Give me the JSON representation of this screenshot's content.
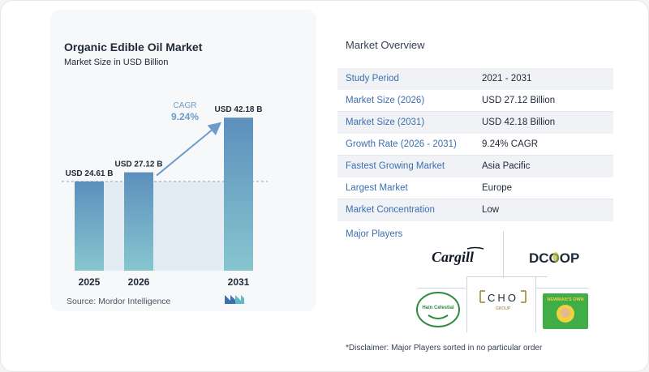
{
  "chart_data": {
    "type": "bar",
    "title": "Organic Edible Oil Market",
    "subtitle": "Market Size in USD Billion",
    "categories": [
      "2025",
      "2026",
      "2031"
    ],
    "values": [
      24.61,
      27.12,
      42.18
    ],
    "value_labels": [
      "USD 24.61 B",
      "USD 27.12 B",
      "USD 42.18 B"
    ],
    "cagr_label": "CAGR",
    "cagr_value": "9.24%",
    "ylim": [
      0,
      44
    ],
    "bar_color_top": "#5d8fbd",
    "bar_color_bottom": "#86c6cf",
    "accent_color": "#6b9ccc"
  },
  "source": "Source:  Mordor Intelligence",
  "overview": {
    "title": "Market Overview",
    "rows": [
      {
        "label": "Study Period",
        "value": "2021 - 2031"
      },
      {
        "label": "Market Size (2026)",
        "value": "USD 27.12 Billion"
      },
      {
        "label": "Market Size (2031)",
        "value": "USD 42.18 Billion"
      },
      {
        "label": "Growth Rate (2026 - 2031)",
        "value": "9.24% CAGR"
      },
      {
        "label": "Fastest Growing Market",
        "value": "Asia Pacific"
      },
      {
        "label": "Largest Market",
        "value": "Europe"
      },
      {
        "label": "Market Concentration",
        "value": "Low"
      }
    ]
  },
  "players": {
    "title": "Major Players",
    "logos": [
      "Cargill",
      "DCOOP",
      "Hain Celestial",
      "CHO",
      "GROUP",
      "NEWMAN'S OWN"
    ]
  },
  "disclaimer": "*Disclaimer: Major Players sorted in no particular order"
}
